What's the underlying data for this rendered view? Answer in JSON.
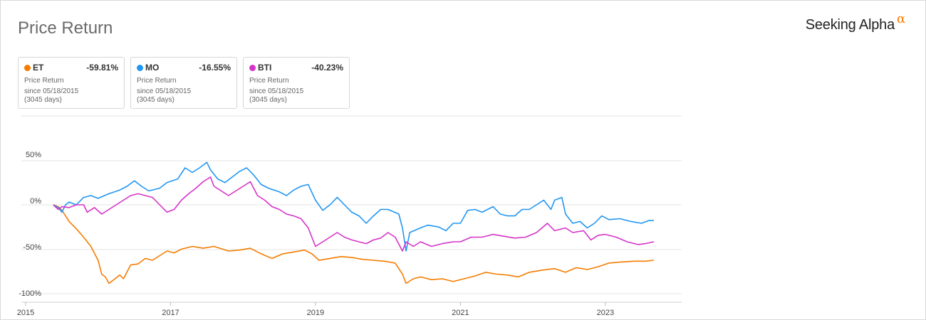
{
  "header": {
    "title": "Price Return",
    "brand": "Seeking Alpha",
    "brand_symbol": "α",
    "brand_symbol_color": "#ff7a00"
  },
  "legend": [
    {
      "ticker": "ET",
      "change": "-59.81%",
      "label": "Price Return",
      "since": "since 05/18/2015",
      "days": "(3045 days)",
      "color": "#f57c00"
    },
    {
      "ticker": "MO",
      "change": "-16.55%",
      "label": "Price Return",
      "since": "since 05/18/2015",
      "days": "(3045 days)",
      "color": "#2196f3"
    },
    {
      "ticker": "BTI",
      "change": "-40.23%",
      "label": "Price Return",
      "since": "since 05/18/2015",
      "days": "(3045 days)",
      "color": "#d633c9"
    }
  ],
  "chart_data": {
    "type": "line",
    "title": "Price Return",
    "xlabel": "",
    "ylabel": "",
    "x_ticks": [
      "2015",
      "2017",
      "2019",
      "2021",
      "2023"
    ],
    "y_ticks": [
      "50%",
      "0%",
      "-50%",
      "-100%"
    ],
    "y_tick_values": [
      50,
      0,
      -50,
      -100
    ],
    "x_range": [
      2015.0,
      2023.67
    ],
    "y_range": [
      -100,
      100
    ],
    "grid": true,
    "legend_position": "top-left",
    "series": [
      {
        "name": "ET",
        "color": "#f57c00",
        "points": [
          [
            2015.38,
            0
          ],
          [
            2015.45,
            -2
          ],
          [
            2015.5,
            -6
          ],
          [
            2015.55,
            -12
          ],
          [
            2015.6,
            -18
          ],
          [
            2015.7,
            -26
          ],
          [
            2015.8,
            -35
          ],
          [
            2015.9,
            -45
          ],
          [
            2016.0,
            -60
          ],
          [
            2016.05,
            -75
          ],
          [
            2016.1,
            -78
          ],
          [
            2016.15,
            -85
          ],
          [
            2016.2,
            -82
          ],
          [
            2016.3,
            -76
          ],
          [
            2016.35,
            -80
          ],
          [
            2016.45,
            -65
          ],
          [
            2016.55,
            -64
          ],
          [
            2016.65,
            -58
          ],
          [
            2016.75,
            -60
          ],
          [
            2016.85,
            -55
          ],
          [
            2016.95,
            -50
          ],
          [
            2017.05,
            -52
          ],
          [
            2017.15,
            -48
          ],
          [
            2017.3,
            -45
          ],
          [
            2017.45,
            -47
          ],
          [
            2017.6,
            -45
          ],
          [
            2017.8,
            -50
          ],
          [
            2017.95,
            -49
          ],
          [
            2018.1,
            -47
          ],
          [
            2018.25,
            -53
          ],
          [
            2018.4,
            -58
          ],
          [
            2018.55,
            -53
          ],
          [
            2018.7,
            -51
          ],
          [
            2018.85,
            -49
          ],
          [
            2018.95,
            -53
          ],
          [
            2019.05,
            -60
          ],
          [
            2019.2,
            -58
          ],
          [
            2019.35,
            -56
          ],
          [
            2019.5,
            -57
          ],
          [
            2019.65,
            -59
          ],
          [
            2019.8,
            -60
          ],
          [
            2019.95,
            -61
          ],
          [
            2020.1,
            -63
          ],
          [
            2020.2,
            -75
          ],
          [
            2020.25,
            -85
          ],
          [
            2020.35,
            -80
          ],
          [
            2020.45,
            -78
          ],
          [
            2020.6,
            -81
          ],
          [
            2020.75,
            -80
          ],
          [
            2020.9,
            -83
          ],
          [
            2021.05,
            -80
          ],
          [
            2021.2,
            -77
          ],
          [
            2021.35,
            -73
          ],
          [
            2021.5,
            -75
          ],
          [
            2021.65,
            -76
          ],
          [
            2021.8,
            -78
          ],
          [
            2021.95,
            -73
          ],
          [
            2022.1,
            -71
          ],
          [
            2022.3,
            -69
          ],
          [
            2022.45,
            -73
          ],
          [
            2022.6,
            -68
          ],
          [
            2022.75,
            -70
          ],
          [
            2022.9,
            -67
          ],
          [
            2023.05,
            -63
          ],
          [
            2023.2,
            -62
          ],
          [
            2023.4,
            -61
          ],
          [
            2023.55,
            -61
          ],
          [
            2023.67,
            -60
          ]
        ]
      },
      {
        "name": "MO",
        "color": "#2196f3",
        "points": [
          [
            2015.38,
            0
          ],
          [
            2015.45,
            -3
          ],
          [
            2015.5,
            -8
          ],
          [
            2015.55,
            0
          ],
          [
            2015.6,
            3
          ],
          [
            2015.7,
            0
          ],
          [
            2015.8,
            8
          ],
          [
            2015.9,
            10
          ],
          [
            2016.0,
            7
          ],
          [
            2016.15,
            12
          ],
          [
            2016.3,
            16
          ],
          [
            2016.4,
            20
          ],
          [
            2016.5,
            26
          ],
          [
            2016.6,
            20
          ],
          [
            2016.7,
            15
          ],
          [
            2016.85,
            18
          ],
          [
            2016.95,
            24
          ],
          [
            2017.1,
            28
          ],
          [
            2017.2,
            40
          ],
          [
            2017.3,
            35
          ],
          [
            2017.4,
            40
          ],
          [
            2017.5,
            46
          ],
          [
            2017.55,
            38
          ],
          [
            2017.65,
            28
          ],
          [
            2017.75,
            24
          ],
          [
            2017.85,
            30
          ],
          [
            2017.95,
            36
          ],
          [
            2018.05,
            40
          ],
          [
            2018.15,
            32
          ],
          [
            2018.25,
            22
          ],
          [
            2018.35,
            18
          ],
          [
            2018.5,
            14
          ],
          [
            2018.6,
            10
          ],
          [
            2018.7,
            16
          ],
          [
            2018.8,
            20
          ],
          [
            2018.9,
            22
          ],
          [
            2019.0,
            5
          ],
          [
            2019.1,
            -6
          ],
          [
            2019.2,
            0
          ],
          [
            2019.3,
            8
          ],
          [
            2019.4,
            0
          ],
          [
            2019.5,
            -8
          ],
          [
            2019.6,
            -12
          ],
          [
            2019.7,
            -20
          ],
          [
            2019.8,
            -12
          ],
          [
            2019.9,
            -5
          ],
          [
            2020.0,
            -5
          ],
          [
            2020.15,
            -10
          ],
          [
            2020.2,
            -25
          ],
          [
            2020.25,
            -50
          ],
          [
            2020.3,
            -30
          ],
          [
            2020.45,
            -25
          ],
          [
            2020.55,
            -22
          ],
          [
            2020.7,
            -24
          ],
          [
            2020.8,
            -28
          ],
          [
            2020.9,
            -20
          ],
          [
            2021.0,
            -20
          ],
          [
            2021.1,
            -6
          ],
          [
            2021.2,
            -5
          ],
          [
            2021.3,
            -8
          ],
          [
            2021.45,
            -2
          ],
          [
            2021.55,
            -10
          ],
          [
            2021.65,
            -12
          ],
          [
            2021.75,
            -12
          ],
          [
            2021.85,
            -5
          ],
          [
            2021.95,
            -5
          ],
          [
            2022.05,
            0
          ],
          [
            2022.15,
            5
          ],
          [
            2022.25,
            -5
          ],
          [
            2022.3,
            5
          ],
          [
            2022.4,
            8
          ],
          [
            2022.45,
            -10
          ],
          [
            2022.55,
            -20
          ],
          [
            2022.65,
            -18
          ],
          [
            2022.75,
            -25
          ],
          [
            2022.85,
            -20
          ],
          [
            2022.95,
            -12
          ],
          [
            2023.05,
            -16
          ],
          [
            2023.2,
            -15
          ],
          [
            2023.35,
            -18
          ],
          [
            2023.5,
            -20
          ],
          [
            2023.6,
            -17
          ],
          [
            2023.67,
            -17
          ]
        ]
      },
      {
        "name": "BTI",
        "color": "#d633c9",
        "points": [
          [
            2015.38,
            0
          ],
          [
            2015.45,
            -5
          ],
          [
            2015.5,
            -2
          ],
          [
            2015.6,
            -3
          ],
          [
            2015.7,
            0
          ],
          [
            2015.8,
            0
          ],
          [
            2015.85,
            -8
          ],
          [
            2015.95,
            -3
          ],
          [
            2016.05,
            -10
          ],
          [
            2016.15,
            -5
          ],
          [
            2016.25,
            0
          ],
          [
            2016.35,
            5
          ],
          [
            2016.45,
            10
          ],
          [
            2016.55,
            12
          ],
          [
            2016.65,
            10
          ],
          [
            2016.75,
            8
          ],
          [
            2016.85,
            0
          ],
          [
            2016.95,
            -8
          ],
          [
            2017.05,
            -5
          ],
          [
            2017.15,
            5
          ],
          [
            2017.25,
            12
          ],
          [
            2017.35,
            18
          ],
          [
            2017.45,
            25
          ],
          [
            2017.55,
            30
          ],
          [
            2017.6,
            20
          ],
          [
            2017.7,
            15
          ],
          [
            2017.8,
            10
          ],
          [
            2017.9,
            15
          ],
          [
            2018.0,
            20
          ],
          [
            2018.1,
            25
          ],
          [
            2018.2,
            10
          ],
          [
            2018.3,
            5
          ],
          [
            2018.4,
            -2
          ],
          [
            2018.5,
            -5
          ],
          [
            2018.6,
            -10
          ],
          [
            2018.7,
            -12
          ],
          [
            2018.8,
            -15
          ],
          [
            2018.9,
            -25
          ],
          [
            2019.0,
            -45
          ],
          [
            2019.1,
            -40
          ],
          [
            2019.2,
            -35
          ],
          [
            2019.3,
            -30
          ],
          [
            2019.4,
            -35
          ],
          [
            2019.5,
            -38
          ],
          [
            2019.6,
            -40
          ],
          [
            2019.7,
            -42
          ],
          [
            2019.8,
            -38
          ],
          [
            2019.9,
            -36
          ],
          [
            2020.0,
            -30
          ],
          [
            2020.1,
            -35
          ],
          [
            2020.2,
            -50
          ],
          [
            2020.25,
            -40
          ],
          [
            2020.35,
            -45
          ],
          [
            2020.45,
            -40
          ],
          [
            2020.6,
            -45
          ],
          [
            2020.75,
            -42
          ],
          [
            2020.9,
            -40
          ],
          [
            2021.0,
            -40
          ],
          [
            2021.15,
            -35
          ],
          [
            2021.3,
            -35
          ],
          [
            2021.45,
            -32
          ],
          [
            2021.6,
            -34
          ],
          [
            2021.75,
            -36
          ],
          [
            2021.9,
            -35
          ],
          [
            2022.05,
            -30
          ],
          [
            2022.2,
            -20
          ],
          [
            2022.3,
            -28
          ],
          [
            2022.45,
            -25
          ],
          [
            2022.55,
            -30
          ],
          [
            2022.7,
            -28
          ],
          [
            2022.8,
            -38
          ],
          [
            2022.9,
            -33
          ],
          [
            2023.0,
            -32
          ],
          [
            2023.15,
            -35
          ],
          [
            2023.3,
            -40
          ],
          [
            2023.45,
            -43
          ],
          [
            2023.55,
            -42
          ],
          [
            2023.67,
            -40
          ]
        ]
      }
    ]
  }
}
